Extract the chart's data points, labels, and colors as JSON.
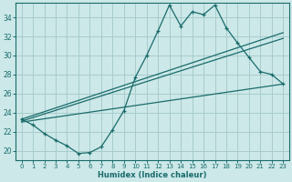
{
  "xlabel": "Humidex (Indice chaleur)",
  "bg_color": "#cce8e8",
  "grid_color": "#a8cccc",
  "line_color": "#1a6b6b",
  "xlim": [
    -0.5,
    23.5
  ],
  "ylim": [
    19.0,
    35.5
  ],
  "xticks": [
    0,
    1,
    2,
    3,
    4,
    5,
    6,
    7,
    8,
    9,
    10,
    11,
    12,
    13,
    14,
    15,
    16,
    17,
    18,
    19,
    20,
    21,
    22,
    23
  ],
  "yticks": [
    20,
    22,
    24,
    26,
    28,
    30,
    32,
    34
  ],
  "main_x": [
    0,
    1,
    2,
    3,
    4,
    5,
    6,
    7,
    8,
    9,
    10,
    11,
    12,
    13,
    14,
    15,
    16,
    17,
    18,
    19,
    20,
    21,
    22,
    23
  ],
  "main_y": [
    23.3,
    22.7,
    21.8,
    21.1,
    20.5,
    19.7,
    19.8,
    20.4,
    22.2,
    24.2,
    27.7,
    30.0,
    32.6,
    35.3,
    33.1,
    34.6,
    34.3,
    35.3,
    32.9,
    31.3,
    29.8,
    28.3,
    28.0,
    27.0
  ],
  "line1_x": [
    0,
    23
  ],
  "line1_y": [
    23.3,
    32.4
  ],
  "line2_x": [
    0,
    23
  ],
  "line2_y": [
    23.1,
    31.8
  ],
  "line3_x": [
    0,
    23
  ],
  "line3_y": [
    23.0,
    27.0
  ]
}
